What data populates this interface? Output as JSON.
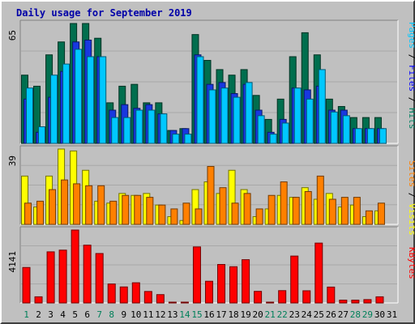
{
  "chart_data": {
    "type": "bar",
    "title": "Daily usage for September 2019",
    "categories": [
      "1",
      "2",
      "3",
      "4",
      "5",
      "6",
      "7",
      "8",
      "9",
      "10",
      "11",
      "12",
      "13",
      "14",
      "15",
      "16",
      "17",
      "18",
      "19",
      "20",
      "21",
      "22",
      "23",
      "24",
      "25",
      "26",
      "27",
      "28",
      "29",
      "30",
      "31"
    ],
    "weekend_days": [
      "1",
      "7",
      "8",
      "14",
      "15",
      "21",
      "22",
      "28",
      "29"
    ],
    "panels": [
      {
        "name": "hits-panel",
        "scale_label": "65",
        "ymax": 65,
        "right_labels": [
          {
            "text": "Pages",
            "color": "#00c8ff"
          },
          {
            "text": " / ",
            "color": "#000000"
          },
          {
            "text": "Files",
            "color": "#0000ff"
          },
          {
            "text": " / ",
            "color": "#000000"
          },
          {
            "text": "Hits",
            "color": "#008060"
          }
        ],
        "series": [
          {
            "name": "Hits",
            "color": "#006e4e",
            "values": [
              37,
              31,
              48,
              55,
              65,
              65,
              57,
              22,
              31,
              32,
              22,
              22,
              7,
              8,
              59,
              45,
              40,
              37,
              40,
              26,
              13,
              24,
              47,
              60,
              48,
              24,
              20,
              14,
              14,
              14,
              null
            ]
          },
          {
            "name": "Files",
            "color": "#1838e0",
            "values": [
              24,
              6,
              25,
              39,
              55,
              56,
              47,
              18,
              21,
              19,
              21,
              16,
              7,
              8,
              48,
              32,
              33,
              27,
              32,
              18,
              6,
              13,
              30,
              29,
              31,
              18,
              18,
              8,
              8,
              8,
              null
            ]
          },
          {
            "name": "Pages",
            "color": "#00c8ff",
            "values": [
              30,
              9,
              37,
              43,
              51,
              47,
              47,
              14,
              14,
              18,
              18,
              16,
              5,
              5,
              47,
              29,
              30,
              25,
              33,
              15,
              5,
              11,
              30,
              24,
              40,
              17,
              15,
              8,
              8,
              8,
              null
            ]
          }
        ]
      },
      {
        "name": "visits-panel",
        "scale_label": "39",
        "ymax": 39,
        "right_labels": [
          {
            "text": "Sites",
            "color": "#ff8000"
          },
          {
            "text": " / ",
            "color": "#000000"
          },
          {
            "text": "Visits",
            "color": "#ffff00"
          }
        ],
        "series": [
          {
            "name": "Visits",
            "color": "#ffff00",
            "values": [
              25,
              9,
              25,
              39,
              38,
              28,
              12,
              11,
              16,
              15,
              16,
              10,
              4,
              2,
              18,
              22,
              16,
              28,
              18,
              4,
              8,
              15,
              14,
              19,
              13,
              16,
              9,
              10,
              4,
              7,
              null
            ]
          },
          {
            "name": "Sites",
            "color": "#ff8000",
            "values": [
              11,
              12,
              18,
              23,
              21,
              20,
              20,
              12,
              15,
              15,
              14,
              10,
              8,
              11,
              8,
              30,
              19,
              11,
              16,
              8,
              15,
              22,
              14,
              17,
              25,
              13,
              14,
              14,
              7,
              11,
              null
            ]
          }
        ]
      },
      {
        "name": "kbytes-panel",
        "scale_label": "4141",
        "ymax": 4141,
        "right_labels": [
          {
            "text": "KBytes",
            "color": "#ff0000"
          }
        ],
        "series": [
          {
            "name": "KBytes",
            "color": "#ff0000",
            "values": [
              2014,
              349,
              2903,
              3000,
              4141,
              3282,
              2808,
              1077,
              909,
              1146,
              651,
              473,
              7,
              7,
              3183,
              1232,
              2186,
              2058,
              2457,
              658,
              7,
              699,
              2663,
              691,
              3400,
              901,
              160,
              160,
              190,
              349,
              null
            ]
          }
        ]
      }
    ]
  }
}
